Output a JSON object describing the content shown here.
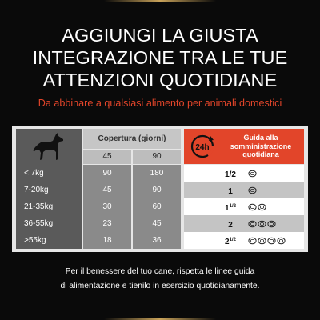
{
  "headline": {
    "line1": "AGGIUNGI LA GIUSTA",
    "line2": "INTEGRAZIONE TRA LE TUE",
    "line3": "ATTENZIONI QUOTIDIANE"
  },
  "subtitle": "Da abbinare a qualsiasi alimento per animali domestici",
  "table": {
    "coverage_label": "Copertura (giorni)",
    "coverage_columns": [
      "45",
      "90"
    ],
    "guide_badge": "24h",
    "guide_title_lines": [
      "Guida alla",
      "somministrazione",
      "quotidiana"
    ],
    "rows": [
      {
        "weight": "< 7kg",
        "days_45": "90",
        "days_90": "180",
        "portion_whole": "1/2",
        "portion_fraction": "",
        "cans": 1
      },
      {
        "weight": "7-20kg",
        "days_45": "45",
        "days_90": "90",
        "portion_whole": "1",
        "portion_fraction": "",
        "cans": 1
      },
      {
        "weight": "21-35kg",
        "days_45": "30",
        "days_90": "60",
        "portion_whole": "1",
        "portion_fraction": "1/2",
        "cans": 2
      },
      {
        "weight": "36-55kg",
        "days_45": "23",
        "days_90": "45",
        "portion_whole": "2",
        "portion_fraction": "",
        "cans": 3
      },
      {
        "weight": ">55kg",
        "days_45": "18",
        "days_90": "36",
        "portion_whole": "2",
        "portion_fraction": "1/2",
        "cans": 4
      }
    ]
  },
  "footer": {
    "line1": "Per il benessere del tuo cane, rispetta le linee guida",
    "line2": "di alimentazione e tienilo in esercizio quotidianamente."
  },
  "colors": {
    "background": "#0a0a0a",
    "accent": "#e2452a",
    "gold_rule": "#c9a35a"
  },
  "icons": {
    "dog": "dog-silhouette-icon",
    "clock": "clock-24h-icon",
    "can": "food-can-icon"
  }
}
